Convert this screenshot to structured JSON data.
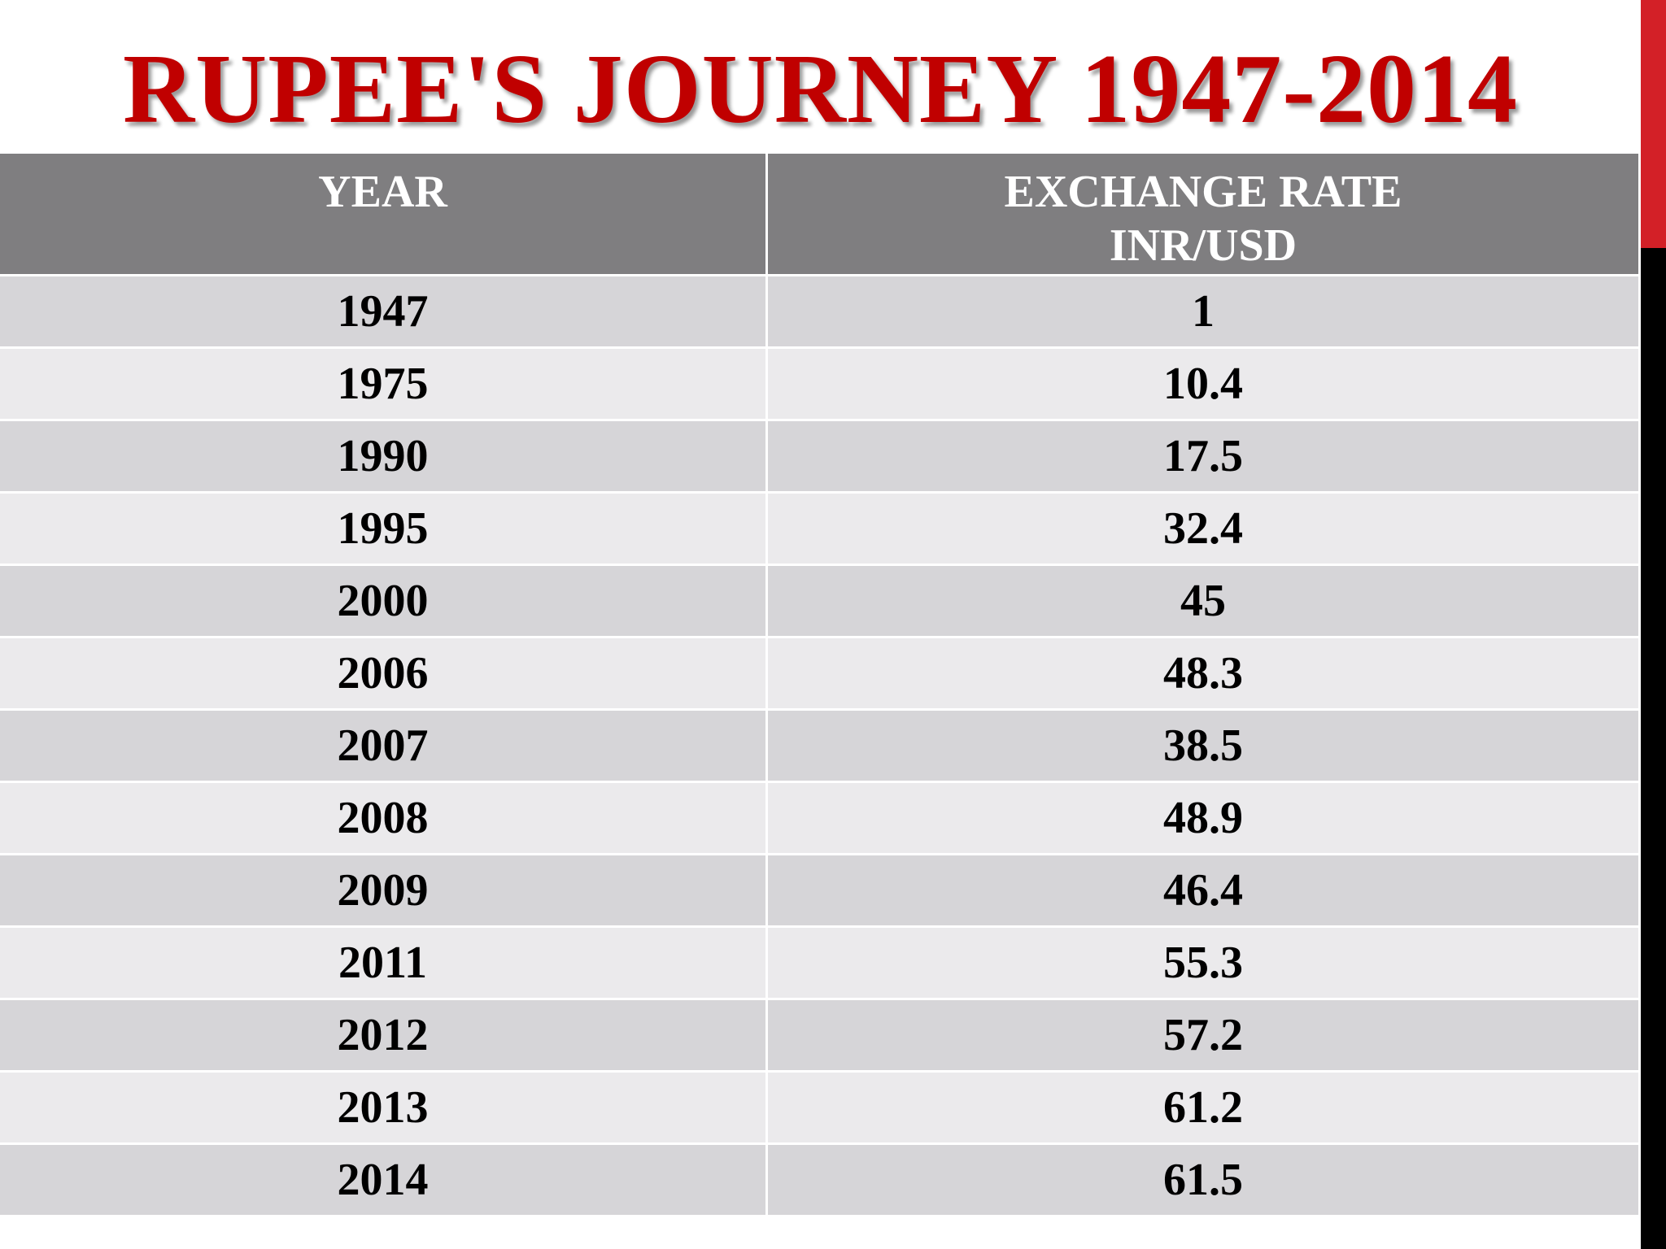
{
  "title": "RUPEE'S JOURNEY 1947-2014",
  "colors": {
    "title": "#c00000",
    "accent_red": "#d32027",
    "accent_black": "#000000",
    "header_bg": "#7f7e80",
    "row_dark": "#d6d5d8",
    "row_light": "#ebeaec"
  },
  "table": {
    "headers": {
      "year": "YEAR",
      "rate_line1": "EXCHANGE RATE",
      "rate_line2": "INR/USD"
    },
    "rows": [
      {
        "year": "1947",
        "rate": "1"
      },
      {
        "year": "1975",
        "rate": "10.4"
      },
      {
        "year": "1990",
        "rate": "17.5"
      },
      {
        "year": "1995",
        "rate": "32.4"
      },
      {
        "year": "2000",
        "rate": "45"
      },
      {
        "year": "2006",
        "rate": "48.3"
      },
      {
        "year": "2007",
        "rate": "38.5"
      },
      {
        "year": "2008",
        "rate": "48.9"
      },
      {
        "year": "2009",
        "rate": "46.4"
      },
      {
        "year": "2011",
        "rate": "55.3"
      },
      {
        "year": "2012",
        "rate": "57.2"
      },
      {
        "year": "2013",
        "rate": "61.2"
      },
      {
        "year": "2014",
        "rate": "61.5"
      }
    ]
  }
}
